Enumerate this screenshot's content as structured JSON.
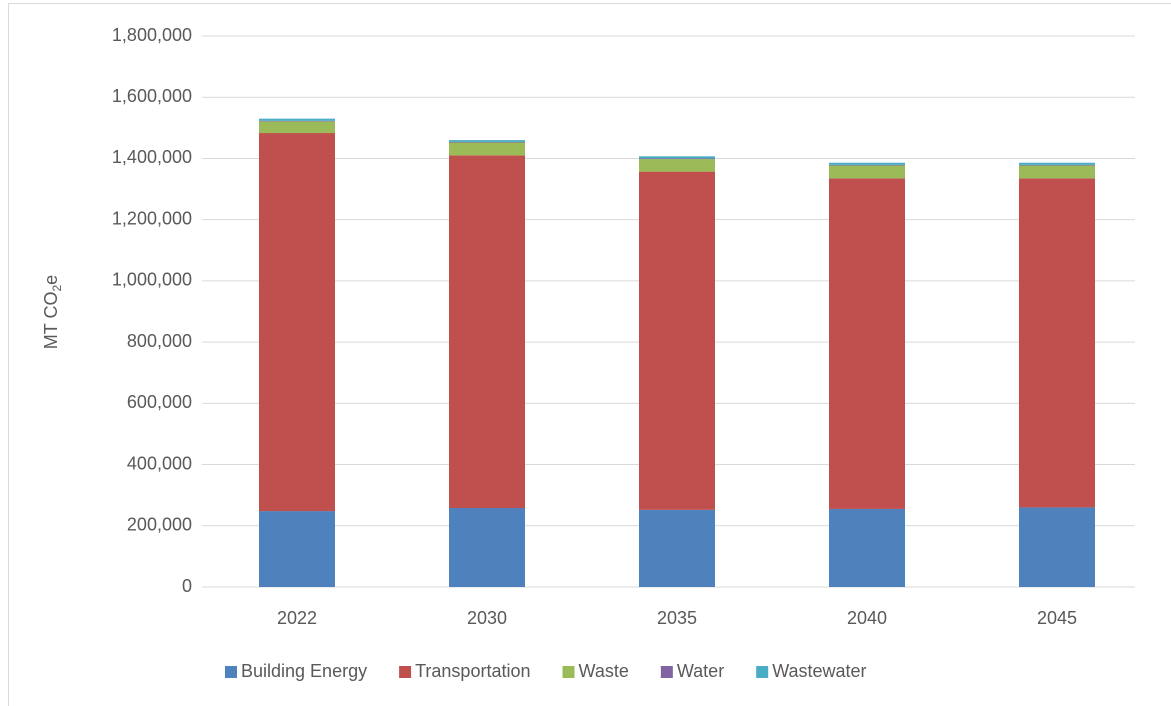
{
  "chart_data": {
    "type": "stacked_bar",
    "y_label": [
      "MT CO",
      "2",
      "e"
    ],
    "categories": [
      "2022",
      "2030",
      "2035",
      "2040",
      "2045"
    ],
    "series": [
      {
        "name": "Building Energy",
        "color": "#4f81bd",
        "values": [
          248000,
          258000,
          252000,
          255000,
          260000
        ]
      },
      {
        "name": "Transportation",
        "color": "#c0504d",
        "values": [
          1235000,
          1152000,
          1105000,
          1080000,
          1075000
        ]
      },
      {
        "name": "Waste",
        "color": "#9bbb59",
        "values": [
          38000,
          42000,
          41000,
          42000,
          42000
        ]
      },
      {
        "name": "Water",
        "color": "#8064a2",
        "values": [
          2000,
          2000,
          2000,
          2000,
          2000
        ]
      },
      {
        "name": "Wastewater",
        "color": "#4bacc6",
        "values": [
          7000,
          6000,
          7000,
          7000,
          7000
        ]
      }
    ],
    "ylim": [
      0,
      1800000
    ],
    "yticks": [
      0,
      {
        "value": 200000,
        "label": "200,000"
      },
      {
        "value": 400000,
        "label": "400,000"
      },
      {
        "value": 600000,
        "label": "600,000"
      },
      {
        "value": 800000,
        "label": "800,000"
      },
      {
        "value": 1000000,
        "label": "1,000,000"
      },
      {
        "value": 1200000,
        "label": "1,200,000"
      },
      {
        "value": 1400000,
        "label": "1,400,000"
      },
      {
        "value": 1600000,
        "label": "1,600,000"
      },
      {
        "value": 1800000,
        "label": "1,800,000"
      }
    ],
    "grid": true,
    "legend": "bottom"
  }
}
